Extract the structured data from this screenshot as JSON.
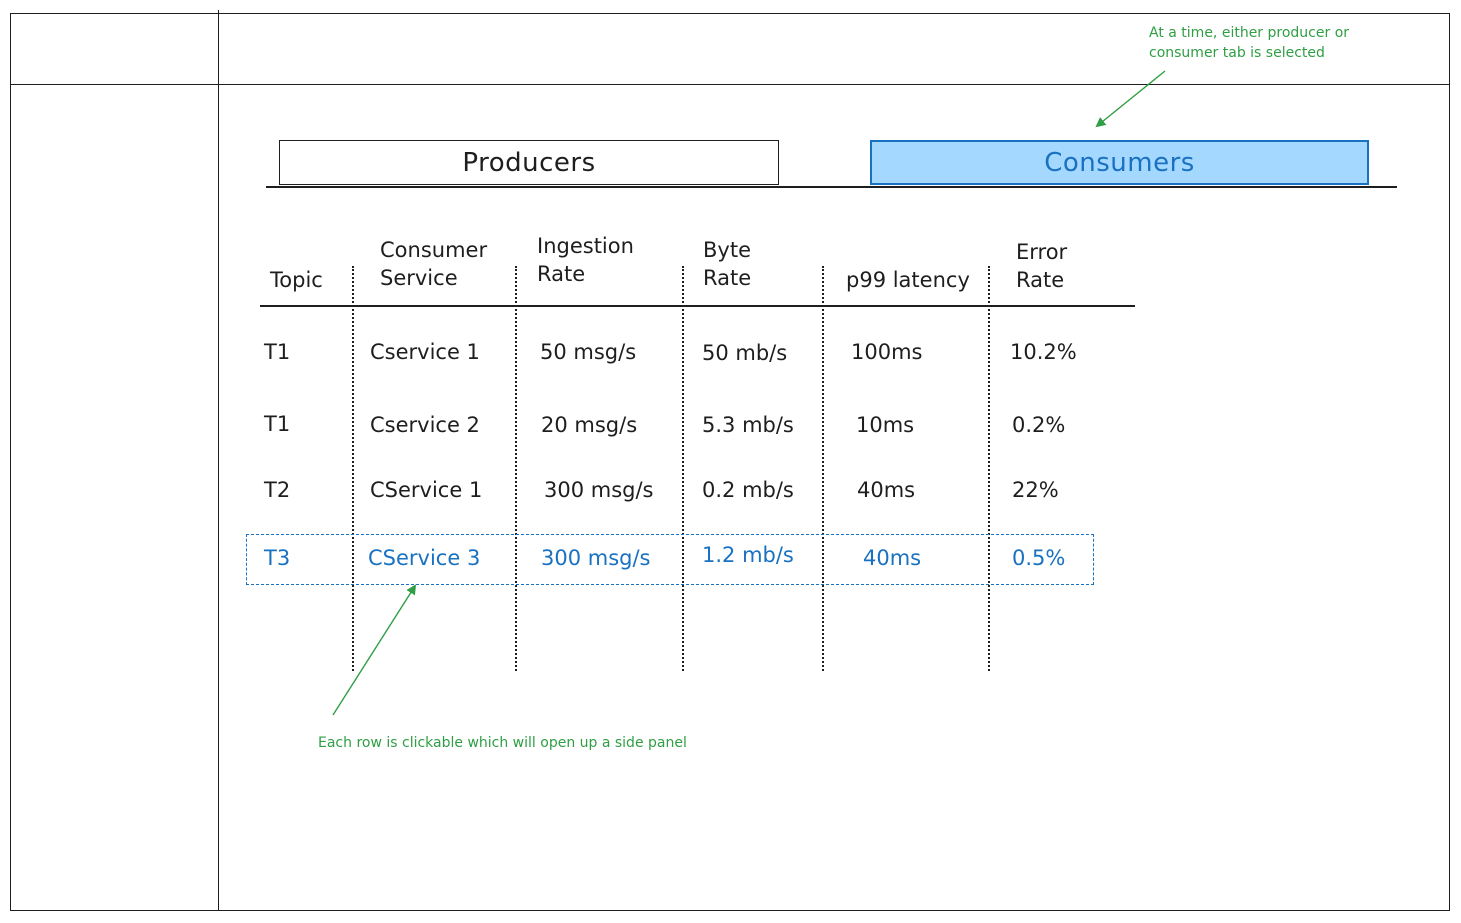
{
  "tabs": {
    "producers_label": "Producers",
    "consumers_label": "Consumers",
    "selected": "Consumers"
  },
  "table": {
    "headers": {
      "topic": "Topic",
      "consumer_service_1": "Consumer",
      "consumer_service_2": "Service",
      "ingestion_rate_1": "Ingestion",
      "ingestion_rate_2": "Rate",
      "byte_rate_1": "Byte",
      "byte_rate_2": "Rate",
      "p99_latency": "p99 latency",
      "error_rate_1": "Error",
      "error_rate_2": "Rate"
    },
    "rows": [
      {
        "topic": "T1",
        "service": "Cservice 1",
        "ingestion": "50  msg/s",
        "bytes": "50  mb/s",
        "latency": "100ms",
        "error": "10.2%"
      },
      {
        "topic": "T1",
        "service": "Cservice  2",
        "ingestion": "20  msg/s",
        "bytes": "5.3  mb/s",
        "latency": "10ms",
        "error": "0.2%"
      },
      {
        "topic": "T2",
        "service": "CService 1",
        "ingestion": "300  msg/s",
        "bytes": "0.2  mb/s",
        "latency": "40ms",
        "error": "22%"
      },
      {
        "topic": "T3",
        "service": "CService  3",
        "ingestion": "300  msg/s",
        "bytes": "1.2  mb/s",
        "latency": "40ms",
        "error": "0.5%"
      }
    ],
    "selected_row_index": 3
  },
  "annotations": {
    "tab_note_line1": "At a time, either producer or",
    "tab_note_line2": "consumer tab is selected",
    "row_note": "Each row is clickable which will open up a side panel"
  },
  "colors": {
    "ink": "#1e1e1e",
    "accent_blue": "#1971c2",
    "selected_tab_fill": "#a5d8ff",
    "annotation_green": "#2f9e44"
  }
}
